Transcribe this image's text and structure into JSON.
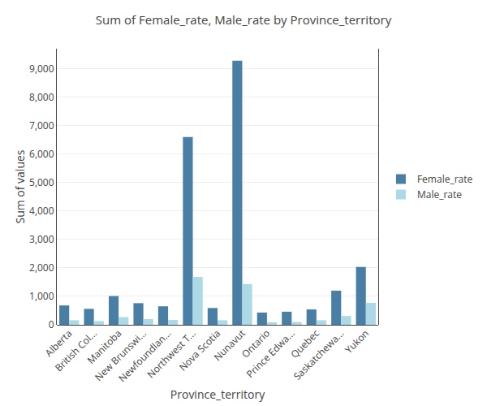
{
  "chart_data": {
    "type": "bar",
    "title": "Sum of Female_rate, Male_rate by Province_territory",
    "xlabel": "Province_territory",
    "ylabel": "Sum of values",
    "categories": [
      "Alberta",
      "British Col...",
      "Manitoba",
      "New Brunswi...",
      "Newfoundlan...",
      "Northwest T...",
      "Nova Scotia",
      "Nunavut",
      "Ontario",
      "Prince Edwa...",
      "Quebec",
      "Saskatchewa...",
      "Yukon"
    ],
    "series": [
      {
        "name": "Female_rate",
        "color": "#4a7fa5",
        "values": [
          680,
          560,
          1010,
          760,
          650,
          6600,
          590,
          9280,
          430,
          460,
          540,
          1200,
          2030
        ]
      },
      {
        "name": "Male_rate",
        "color": "#add8e6",
        "values": [
          160,
          130,
          270,
          200,
          170,
          1680,
          160,
          1430,
          90,
          100,
          160,
          310,
          770
        ]
      }
    ],
    "ylim": [
      0,
      9700
    ],
    "yticks": [
      0,
      {
        "value": 1000,
        "label": "1,000"
      },
      {
        "value": 2000,
        "label": "2,000"
      },
      {
        "value": 3000,
        "label": "3,000"
      },
      {
        "value": 4000,
        "label": "4,000"
      },
      {
        "value": 5000,
        "label": "5,000"
      },
      {
        "value": 6000,
        "label": "6,000"
      },
      {
        "value": 7000,
        "label": "7,000"
      },
      {
        "value": 8000,
        "label": "8,000"
      },
      {
        "value": 9000,
        "label": "9,000"
      }
    ],
    "grid": true,
    "legend": "right"
  }
}
